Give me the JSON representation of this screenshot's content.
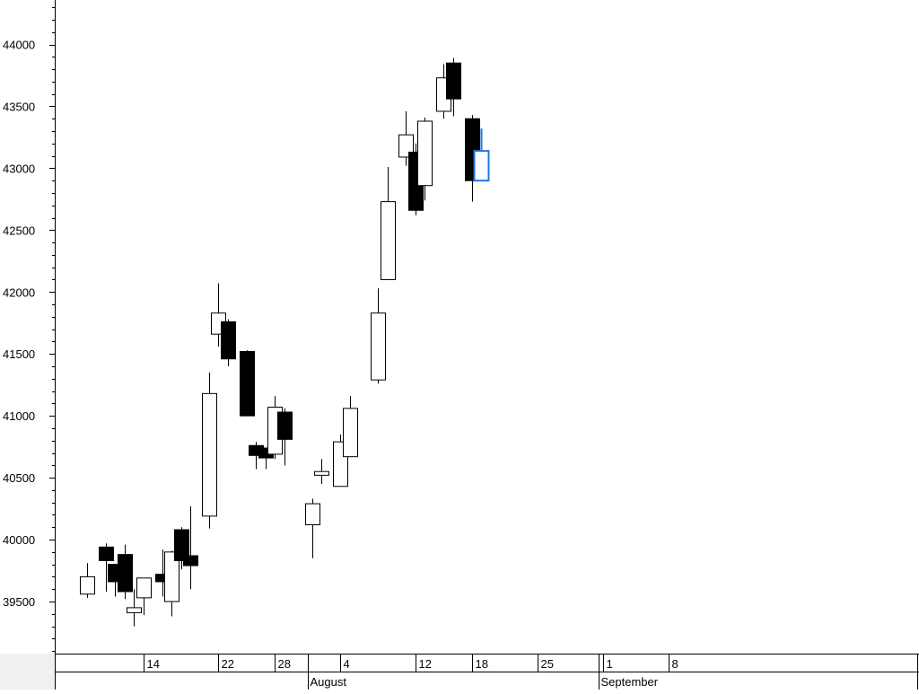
{
  "chart_data": {
    "type": "candlestick",
    "title": "",
    "xlabel": "",
    "ylabel": "",
    "ylim": [
      39050,
      44350
    ],
    "y_ticks": [
      39500,
      40000,
      40500,
      41000,
      41500,
      42000,
      42500,
      43000,
      43500,
      44000
    ],
    "x_tick_labels": [
      {
        "label": "14",
        "day": 14
      },
      {
        "label": "22",
        "day": 22
      },
      {
        "label": "28",
        "day": 28
      },
      {
        "label": "4",
        "day": 35
      },
      {
        "label": "12",
        "day": 43
      },
      {
        "label": "18",
        "day": 49
      },
      {
        "label": "25",
        "day": 56
      },
      {
        "label": "1",
        "day": 63
      },
      {
        "label": "8",
        "day": 70
      }
    ],
    "month_labels": [
      {
        "label": "August",
        "day": 32
      },
      {
        "label": "September",
        "day": 63
      }
    ],
    "colors": {
      "up_fill": "#ffffff",
      "down_fill": "#000000",
      "outline": "#000000",
      "live_candle": "#1e78e6"
    },
    "candles": [
      {
        "day": 8,
        "open": 39560,
        "high": 39810,
        "low": 39530,
        "close": 39700,
        "live": false
      },
      {
        "day": 10,
        "open": 39940,
        "high": 39970,
        "low": 39580,
        "close": 39830,
        "live": false
      },
      {
        "day": 11,
        "open": 39800,
        "high": 39800,
        "low": 39540,
        "close": 39660,
        "live": false
      },
      {
        "day": 12,
        "open": 39880,
        "high": 39960,
        "low": 39520,
        "close": 39580,
        "live": false
      },
      {
        "day": 13,
        "open": 39410,
        "high": 39600,
        "low": 39300,
        "close": 39450,
        "live": false
      },
      {
        "day": 14,
        "open": 39530,
        "high": 39690,
        "low": 39390,
        "close": 39690,
        "live": false
      },
      {
        "day": 16,
        "open": 39720,
        "high": 39920,
        "low": 39540,
        "close": 39660,
        "live": false
      },
      {
        "day": 17,
        "open": 39500,
        "high": 39910,
        "low": 39380,
        "close": 39900,
        "live": false
      },
      {
        "day": 18,
        "open": 40080,
        "high": 40100,
        "low": 39760,
        "close": 39830,
        "live": false
      },
      {
        "day": 19,
        "open": 39870,
        "high": 40270,
        "low": 39600,
        "close": 39790,
        "live": false
      },
      {
        "day": 21,
        "open": 40190,
        "high": 41350,
        "low": 40090,
        "close": 41180,
        "live": false
      },
      {
        "day": 22,
        "open": 41660,
        "high": 42070,
        "low": 41560,
        "close": 41830,
        "live": false
      },
      {
        "day": 23,
        "open": 41760,
        "high": 41780,
        "low": 41400,
        "close": 41460,
        "live": false
      },
      {
        "day": 25,
        "open": 41520,
        "high": 41530,
        "low": 41000,
        "close": 41000,
        "live": false
      },
      {
        "day": 26,
        "open": 40760,
        "high": 40790,
        "low": 40570,
        "close": 40680,
        "live": false
      },
      {
        "day": 27,
        "open": 40740,
        "high": 40740,
        "low": 40570,
        "close": 40660,
        "live": false
      },
      {
        "day": 28,
        "open": 40690,
        "high": 41160,
        "low": 40650,
        "close": 41070,
        "live": false
      },
      {
        "day": 29,
        "open": 41030,
        "high": 41060,
        "low": 40600,
        "close": 40810,
        "live": false
      },
      {
        "day": 32,
        "open": 40120,
        "high": 40330,
        "low": 39850,
        "close": 40290,
        "live": false
      },
      {
        "day": 33,
        "open": 40520,
        "high": 40650,
        "low": 40450,
        "close": 40550,
        "live": false
      },
      {
        "day": 35,
        "open": 40430,
        "high": 40850,
        "low": 40430,
        "close": 40790,
        "live": false
      },
      {
        "day": 36,
        "open": 40670,
        "high": 41160,
        "low": 40670,
        "close": 41060,
        "live": false
      },
      {
        "day": 39,
        "open": 41290,
        "high": 42030,
        "low": 41260,
        "close": 41830,
        "live": false
      },
      {
        "day": 40,
        "open": 42100,
        "high": 43010,
        "low": 42100,
        "close": 42730,
        "live": false
      },
      {
        "day": 42,
        "open": 43090,
        "high": 43460,
        "low": 43020,
        "close": 43270,
        "live": false
      },
      {
        "day": 43,
        "open": 43130,
        "high": 43200,
        "low": 42620,
        "close": 42660,
        "live": false
      },
      {
        "day": 44,
        "open": 42860,
        "high": 43410,
        "low": 42740,
        "close": 43380,
        "live": false
      },
      {
        "day": 46,
        "open": 43460,
        "high": 43840,
        "low": 43400,
        "close": 43730,
        "live": false
      },
      {
        "day": 47,
        "open": 43850,
        "high": 43890,
        "low": 43420,
        "close": 43560,
        "live": false
      },
      {
        "day": 49,
        "open": 43400,
        "high": 43430,
        "low": 42730,
        "close": 42900,
        "live": false
      },
      {
        "day": 50,
        "open": 42900,
        "high": 43320,
        "low": 42900,
        "close": 43140,
        "live": true
      }
    ]
  }
}
